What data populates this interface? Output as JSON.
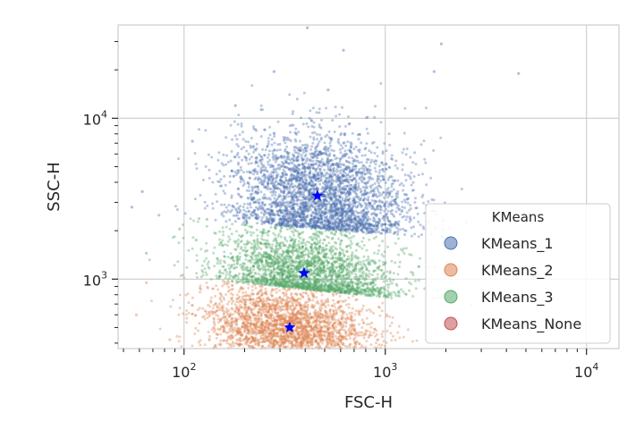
{
  "chart_data": {
    "type": "scatter",
    "title": "",
    "xlabel": "FSC-H",
    "ylabel": "SSC-H",
    "xscale": "log",
    "yscale": "log",
    "xlim": [
      47,
      14500
    ],
    "ylim": [
      370,
      38000
    ],
    "grid": true,
    "x_ticks": [
      {
        "value": 100,
        "base": "10",
        "exp": "2"
      },
      {
        "value": 1000,
        "base": "10",
        "exp": "3"
      },
      {
        "value": 10000,
        "base": "10",
        "exp": "4"
      }
    ],
    "y_ticks": [
      {
        "value": 1000,
        "base": "10",
        "exp": "3"
      },
      {
        "value": 10000,
        "base": "10",
        "exp": "4"
      }
    ],
    "legend": {
      "title": "KMeans",
      "placement": "lower-right",
      "entries": [
        "KMeans_1",
        "KMeans_2",
        "KMeans_3",
        "KMeans_None"
      ]
    },
    "series": [
      {
        "name": "KMeans_1",
        "color": "#4c72b0",
        "cloud": {
          "x_center": 470,
          "y_center": 3300,
          "x_spread": 0.22,
          "y_spread": 0.2,
          "count": 3200
        },
        "outliers": [
          [
            55,
            2800
          ],
          [
            62,
            3500
          ],
          [
            110,
            7200
          ],
          [
            180,
            12000
          ],
          [
            280,
            19500
          ],
          [
            410,
            36500
          ],
          [
            620,
            26500
          ],
          [
            1900,
            29000
          ],
          [
            1750,
            19500
          ],
          [
            4600,
            19000
          ],
          [
            520,
            15000
          ]
        ]
      },
      {
        "name": "KMeans_2",
        "color": "#dd8452",
        "cloud": {
          "x_center": 330,
          "y_center": 500,
          "x_spread": 0.2,
          "y_spread": 0.12,
          "count": 2600
        },
        "outliers": [
          [
            58,
            600
          ],
          [
            65,
            950
          ],
          [
            85,
            420
          ],
          [
            120,
            880
          ],
          [
            150,
            700
          ]
        ]
      },
      {
        "name": "KMeans_3",
        "color": "#55a868",
        "cloud": {
          "x_center": 400,
          "y_center": 1100,
          "x_spread": 0.22,
          "y_spread": 0.13,
          "count": 2400
        },
        "outliers": [
          [
            65,
            1450
          ],
          [
            95,
            2050
          ],
          [
            115,
            1750
          ],
          [
            130,
            2350
          ],
          [
            75,
            2500
          ]
        ]
      },
      {
        "name": "KMeans_None",
        "color": "#c44e52",
        "cloud": null,
        "outliers": []
      }
    ],
    "centroids": {
      "color": "#0000ff",
      "marker": "star",
      "points": [
        {
          "series": "KMeans_1",
          "x": 460,
          "y": 3300
        },
        {
          "series": "KMeans_3",
          "x": 395,
          "y": 1090
        },
        {
          "series": "KMeans_2",
          "x": 335,
          "y": 500
        }
      ]
    }
  }
}
